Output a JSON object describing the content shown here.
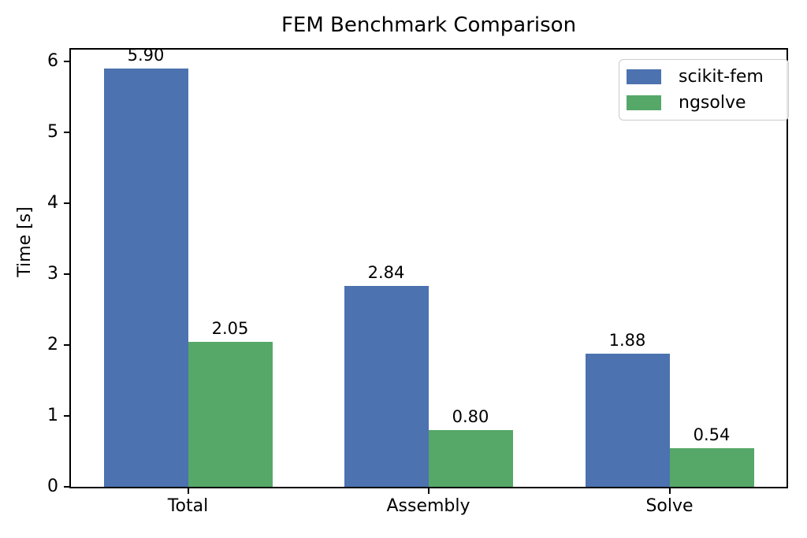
{
  "chart_data": {
    "type": "bar",
    "title": "FEM Benchmark Comparison",
    "xlabel": "",
    "ylabel": "Time [s]",
    "categories": [
      "Total",
      "Assembly",
      "Solve"
    ],
    "series": [
      {
        "name": "scikit-fem",
        "color": "#4C72B0",
        "values": [
          5.9,
          2.84,
          1.88
        ],
        "value_labels": [
          "5.90",
          "2.84",
          "1.88"
        ]
      },
      {
        "name": "ngsolve",
        "color": "#55A868",
        "values": [
          2.05,
          0.8,
          0.54
        ],
        "value_labels": [
          "2.05",
          "0.80",
          "0.54"
        ]
      }
    ],
    "yticks": [
      0,
      1,
      2,
      3,
      4,
      5,
      6
    ],
    "ytick_labels": [
      "0",
      "1",
      "2",
      "3",
      "4",
      "5",
      "6"
    ],
    "ylim": [
      0,
      6.17
    ],
    "grid": false,
    "legend_position": "upper right",
    "colors": {
      "spine": "#000000",
      "text": "#000000",
      "legend_border": "#cccccc",
      "background": "#ffffff"
    }
  }
}
